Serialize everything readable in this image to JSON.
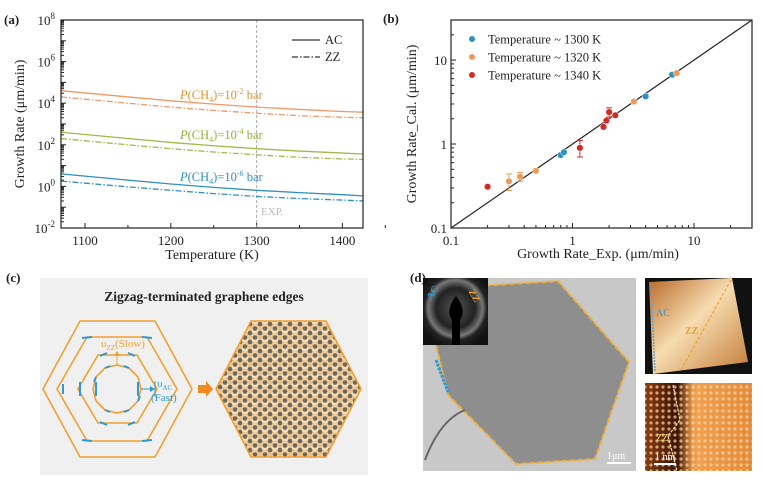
{
  "panels": {
    "a": {
      "label": "(a)"
    },
    "b": {
      "label": "(b)"
    },
    "c": {
      "label": "(c)",
      "title": "Zigzag-terminated graphene edges",
      "slow_label": {
        "symbol": "υ",
        "sub": "ZZ",
        "text": "(Slow)"
      },
      "fast_label": {
        "symbol": "υ",
        "sub": "AC",
        "text": "(Fast)"
      },
      "colors": {
        "hexagon": "#f0a030",
        "ac_edge": "#2f9ad0",
        "background": "#f0f0f0"
      }
    },
    "d": {
      "label": "(d)",
      "inset_ac": "AC",
      "inset_zz": "ZZ",
      "tem_scale": "1μm",
      "stm_ac": "AC",
      "stm_zz": "ZZ",
      "stm2_zz": "ZZ",
      "stm2_scale": "1 nm"
    }
  },
  "chart_data": [
    {
      "type": "line",
      "xlabel": "Temperature (K)",
      "ylabel": "Growth Rate (μm/min)",
      "xlim": [
        1072,
        1424
      ],
      "ylim": [
        0.01,
        100000000
      ],
      "yscale": "log",
      "x_ticks": [
        "1100",
        "1200",
        "1300",
        "1400"
      ],
      "y_ticks": [
        {
          "base": "10",
          "exp": "-2"
        },
        {
          "base": "10",
          "exp": "0"
        },
        {
          "base": "10",
          "exp": "2"
        },
        {
          "base": "10",
          "exp": "4"
        },
        {
          "base": "10",
          "exp": "6"
        },
        {
          "base": "10",
          "exp": "8"
        }
      ],
      "legend": {
        "position": "top-right",
        "entries": [
          {
            "label": "AC",
            "style": "solid"
          },
          {
            "label": "ZZ",
            "style": "dash-dot"
          }
        ]
      },
      "vline": {
        "x": 1300,
        "label": "EXP."
      },
      "annotations": [
        {
          "italic": "P",
          "text": "(CH",
          "sub": "4",
          "mid": ")=10",
          "sup": "-2",
          "end": " bar",
          "color": "#e0962e"
        },
        {
          "italic": "P",
          "text": "(CH",
          "sub": "4",
          "mid": ")=10",
          "sup": "-4",
          "end": " bar",
          "color": "#98ad3a"
        },
        {
          "italic": "P",
          "text": "(CH",
          "sub": "4",
          "mid": ")=10",
          "sup": "-6",
          "end": " bar",
          "color": "#2f8fc0"
        }
      ],
      "x": [
        1072,
        1150,
        1200,
        1250,
        1300,
        1350,
        1400,
        1424
      ],
      "series": [
        {
          "edge": "AC",
          "pressure_bar": 0.01,
          "color": "#ec9a68",
          "values": [
            40000,
            20000,
            13000,
            9000,
            6500,
            5000,
            4000,
            3700
          ]
        },
        {
          "edge": "ZZ",
          "pressure_bar": 0.01,
          "color": "#ec9a68",
          "values": [
            20000,
            10000,
            6500,
            4500,
            3300,
            2500,
            2100,
            2000
          ]
        },
        {
          "edge": "AC",
          "pressure_bar": 0.0001,
          "color": "#a4b84a",
          "values": [
            400,
            200,
            130,
            90,
            65,
            50,
            40,
            36
          ]
        },
        {
          "edge": "ZZ",
          "pressure_bar": 0.0001,
          "color": "#a4b84a",
          "values": [
            200,
            100,
            65,
            45,
            33,
            25,
            21,
            20
          ]
        },
        {
          "edge": "AC",
          "pressure_bar": 1e-06,
          "color": "#2f8fc0",
          "values": [
            4,
            2,
            1.3,
            0.9,
            0.65,
            0.5,
            0.4,
            0.35
          ]
        },
        {
          "edge": "ZZ",
          "pressure_bar": 1e-06,
          "color": "#2f8fc0",
          "values": [
            1.8,
            0.95,
            0.65,
            0.45,
            0.33,
            0.26,
            0.22,
            0.2
          ]
        }
      ]
    },
    {
      "type": "scatter",
      "xlabel": "Growth Rate_Exp. (μm/min)",
      "ylabel": "Growth Rate_Cal. (μm/min)",
      "xscale": "log",
      "yscale": "log",
      "xlim": [
        0.1,
        30
      ],
      "ylim": [
        0.1,
        30
      ],
      "x_ticks": [
        "0.1",
        "1",
        "10"
      ],
      "y_ticks": [
        "0.1",
        "1",
        "10"
      ],
      "reference_line": "y = x",
      "legend": {
        "position": "top-left"
      },
      "series": [
        {
          "name": "Temperature ~ 1300 K",
          "color": "#2f8fc0",
          "points": [
            {
              "x": 0.8,
              "y": 0.74
            },
            {
              "x": 0.85,
              "y": 0.8
            },
            {
              "x": 4.0,
              "y": 3.7
            },
            {
              "x": 6.6,
              "y": 6.7
            }
          ]
        },
        {
          "name": "Temperature ~ 1320 K",
          "color": "#ec9a55",
          "points": [
            {
              "x": 0.3,
              "y": 0.36,
              "err": 0.08
            },
            {
              "x": 0.37,
              "y": 0.41,
              "err": 0.05
            },
            {
              "x": 0.5,
              "y": 0.48
            },
            {
              "x": 3.2,
              "y": 3.2
            },
            {
              "x": 7.2,
              "y": 7.0
            }
          ]
        },
        {
          "name": "Temperature ~ 1340 K",
          "color": "#d42a25",
          "points": [
            {
              "x": 0.2,
              "y": 0.31
            },
            {
              "x": 1.15,
              "y": 0.9,
              "err": 0.2
            },
            {
              "x": 1.8,
              "y": 1.6
            },
            {
              "x": 1.9,
              "y": 1.9
            },
            {
              "x": 2.0,
              "y": 2.4,
              "err": 0.3
            },
            {
              "x": 2.25,
              "y": 2.2
            }
          ]
        }
      ]
    }
  ]
}
